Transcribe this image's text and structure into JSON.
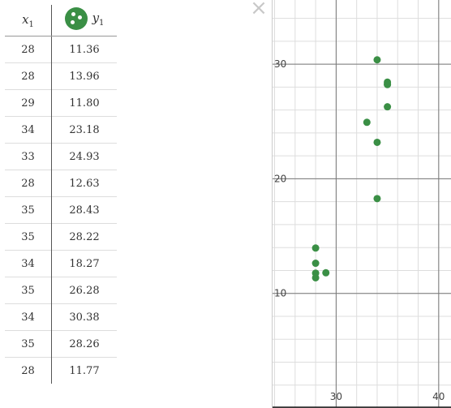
{
  "table": {
    "x_header": "x",
    "x_sub": "1",
    "y_header": "y",
    "y_sub": "1",
    "rows": [
      {
        "x": "28",
        "y": "11.36"
      },
      {
        "x": "28",
        "y": "13.96"
      },
      {
        "x": "29",
        "y": "11.80"
      },
      {
        "x": "34",
        "y": "23.18"
      },
      {
        "x": "33",
        "y": "24.93"
      },
      {
        "x": "28",
        "y": "12.63"
      },
      {
        "x": "35",
        "y": "28.43"
      },
      {
        "x": "35",
        "y": "28.22"
      },
      {
        "x": "34",
        "y": "18.27"
      },
      {
        "x": "35",
        "y": "26.28"
      },
      {
        "x": "34",
        "y": "30.38"
      },
      {
        "x": "35",
        "y": "28.26"
      },
      {
        "x": "28",
        "y": "11.77"
      }
    ]
  },
  "close_icon": "close-icon",
  "series_icon": "scatter-points-icon",
  "colors": {
    "series": "#3a8f45",
    "grid_major": "#777777",
    "grid_minor": "#dddddd"
  },
  "chart_data": {
    "type": "scatter",
    "x": [
      28,
      28,
      29,
      34,
      33,
      28,
      35,
      35,
      34,
      35,
      34,
      35,
      28
    ],
    "y": [
      11.36,
      13.96,
      11.8,
      23.18,
      24.93,
      12.63,
      28.43,
      28.22,
      18.27,
      26.28,
      30.38,
      28.26,
      11.77
    ],
    "x_ticks": [
      "30",
      "40"
    ],
    "y_ticks": [
      "10",
      "20",
      "30"
    ],
    "xlim": [
      23.8,
      41.2
    ],
    "ylim": [
      0,
      35.6
    ],
    "grid": true
  }
}
